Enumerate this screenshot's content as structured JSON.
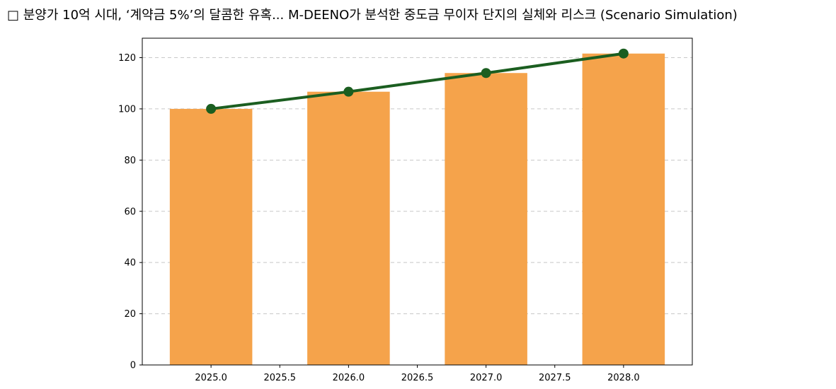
{
  "chart_data": {
    "type": "bar",
    "title": "□ 분양가 10억 시대, ‘계약금 5%’의 달콤한 유혹... M-DEENO가 분석한 중도금 무이자 단지의 실체와 리스크 (Scenario Simulation)",
    "xlabel": "",
    "ylabel": "",
    "x": [
      2025.0,
      2026.0,
      2027.0,
      2028.0
    ],
    "xlim": [
      2024.5,
      2028.5
    ],
    "ylim": [
      0,
      127.6
    ],
    "xticks": [
      "2025.0",
      "2025.5",
      "2026.0",
      "2026.5",
      "2027.0",
      "2027.5",
      "2028.0"
    ],
    "yticks": [
      "0",
      "20",
      "40",
      "60",
      "80",
      "100",
      "120"
    ],
    "grid": "horizontal-dashed",
    "series": [
      {
        "kind": "bar",
        "values": [
          100,
          106.7,
          114,
          121.6
        ],
        "color": "#f5a34b"
      },
      {
        "kind": "line",
        "values": [
          100,
          106.7,
          114,
          121.6
        ],
        "color": "#1b5e20"
      }
    ]
  }
}
